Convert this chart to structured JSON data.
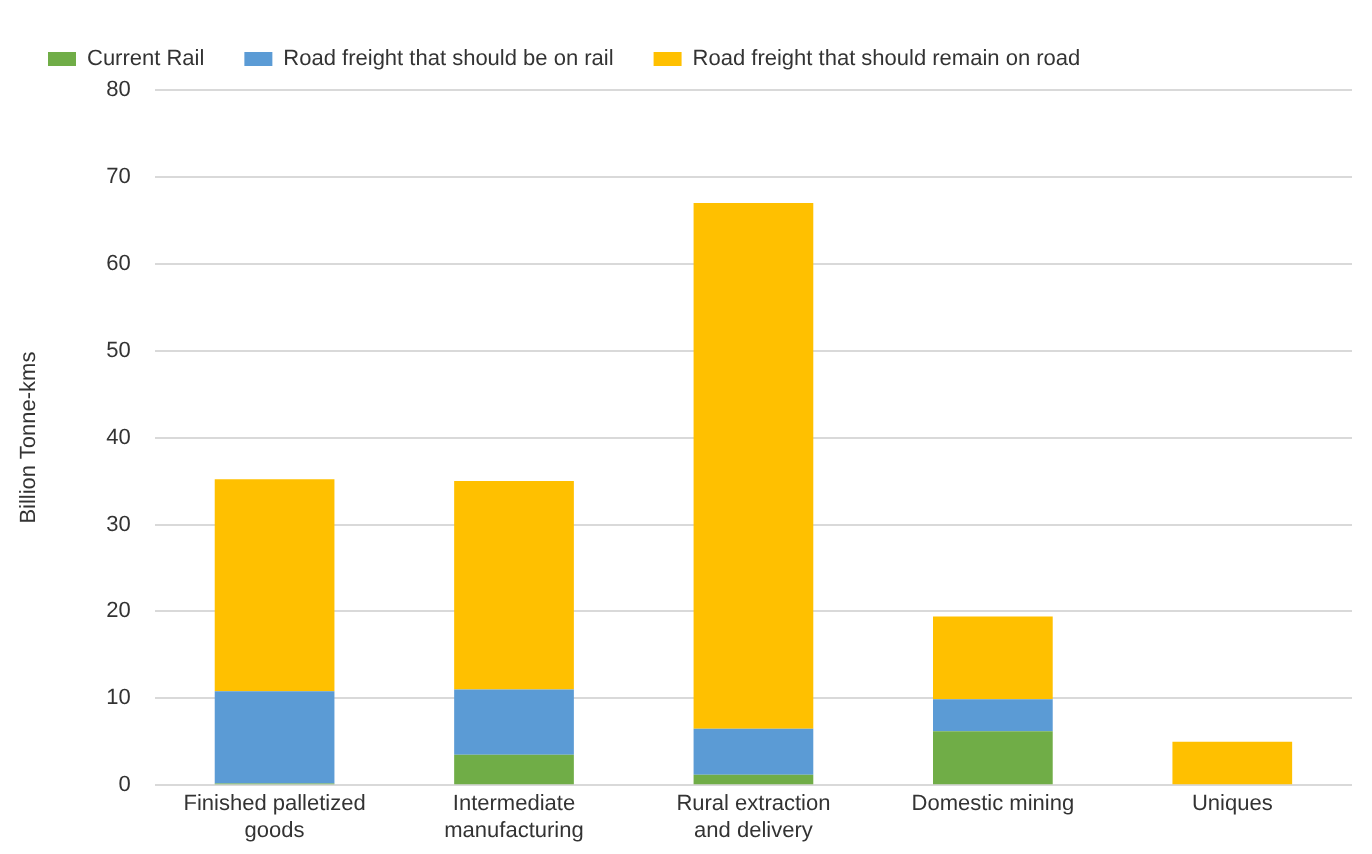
{
  "chart_data": {
    "type": "bar",
    "stacked": true,
    "ylabel": "Billion Tonne-kms",
    "categories": [
      "Finished palletized goods",
      "Intermediate manufacturing",
      "Rural extraction and delivery",
      "Domestic mining",
      "Uniques"
    ],
    "series": [
      {
        "name": "Current Rail",
        "color": "#70ad47",
        "values": [
          0.2,
          3.5,
          1.2,
          6.2,
          0
        ]
      },
      {
        "name": "Road freight that should be on rail",
        "color": "#5b9bd5",
        "values": [
          10.6,
          7.5,
          5.3,
          3.7,
          0
        ]
      },
      {
        "name": "Road freight that should remain on road",
        "color": "#ffc000",
        "values": [
          24.4,
          24,
          60.5,
          9.5,
          5
        ]
      }
    ],
    "ylim": [
      0,
      80
    ],
    "yticks": [
      0,
      10,
      20,
      30,
      40,
      50,
      60,
      70,
      80
    ],
    "grid": "y",
    "legend": "top"
  }
}
